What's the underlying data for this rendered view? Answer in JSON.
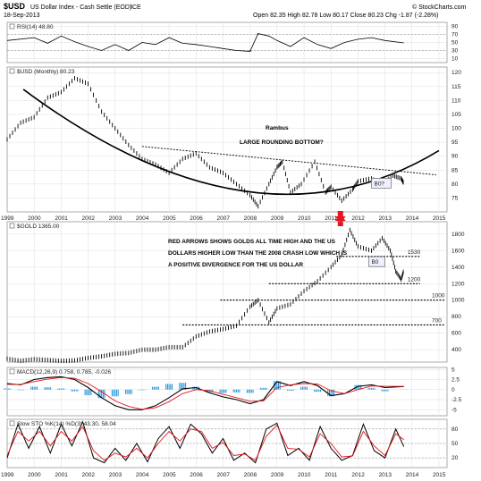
{
  "header": {
    "symbol": "$USD",
    "name": "US Dollar Index - Cash Settle (EOD)",
    "exchange": "ICE",
    "date": "18-Sep-2013",
    "quote": "Open 82.35  High 82.78  Low 80.17  Close 80.23  Chg -1.87 (-2.28%)",
    "watermark": "© StockCharts.com"
  },
  "colors": {
    "price": "#000000",
    "arrow": "#e8141c",
    "macd_hist": "#1e90d6",
    "signal": "#e8141c",
    "rsi_fill": "#b22222",
    "grid": "#dddddd"
  },
  "chart_data": [
    {
      "type": "line",
      "panel": "rsi",
      "title": "RSI(14) 48.80",
      "yticks": [
        90,
        70,
        50,
        30,
        10
      ],
      "ylim": [
        0,
        100
      ],
      "levels": [
        70,
        30
      ],
      "x": [
        1999,
        2000,
        2000.5,
        2001,
        2001.5,
        2002,
        2002.5,
        2003,
        2003.5,
        2004,
        2004.5,
        2005,
        2005.5,
        2006,
        2006.5,
        2007,
        2007.5,
        2008,
        2008.3,
        2008.7,
        2009,
        2009.5,
        2010,
        2010.5,
        2011,
        2011.5,
        2012,
        2012.5,
        2013,
        2013.7
      ],
      "values": [
        55,
        62,
        48,
        66,
        52,
        40,
        30,
        45,
        30,
        50,
        45,
        62,
        48,
        45,
        40,
        35,
        30,
        28,
        72,
        66,
        55,
        40,
        62,
        45,
        35,
        50,
        58,
        62,
        55,
        48.8
      ]
    },
    {
      "type": "line",
      "panel": "usd",
      "title": "$USD (Monthly) 80.23",
      "ylabel": "",
      "yticks": [
        120,
        115,
        110,
        105,
        100,
        95,
        90,
        85,
        80,
        75
      ],
      "ylim": [
        70,
        122
      ],
      "x": [
        1999.0,
        1999.5,
        2000.0,
        2000.5,
        2001.0,
        2001.5,
        2002.0,
        2002.5,
        2003.0,
        2003.5,
        2004.0,
        2004.5,
        2005.0,
        2005.5,
        2006.0,
        2006.5,
        2007.0,
        2007.5,
        2008.0,
        2008.3,
        2008.7,
        2009.0,
        2009.2,
        2009.5,
        2009.9,
        2010.4,
        2010.8,
        2011.0,
        2011.4,
        2011.8,
        2012.0,
        2012.5,
        2012.9,
        2013.3,
        2013.6,
        2013.7
      ],
      "values": [
        96,
        102,
        104,
        111,
        113,
        118,
        116,
        106,
        100,
        94,
        89,
        87,
        84,
        89,
        91,
        86,
        84,
        80,
        76,
        72,
        80,
        86,
        88,
        77,
        80,
        88,
        77,
        79,
        74,
        78,
        81,
        82,
        80,
        83,
        82,
        80.23
      ],
      "annotations": [
        "Rambus",
        "LARGE ROUNDING BOTTOM?",
        "B0?"
      ]
    },
    {
      "type": "line",
      "panel": "gold",
      "title": "$GOLD 1365.00",
      "yticks": [
        1800,
        1600,
        1400,
        1200,
        1000,
        800,
        600,
        400
      ],
      "ylim": [
        250,
        1950
      ],
      "x": [
        1999.0,
        1999.5,
        2000.0,
        2000.5,
        2001.0,
        2001.5,
        2002.0,
        2002.5,
        2003.0,
        2003.5,
        2004.0,
        2004.5,
        2005.0,
        2005.5,
        2006.0,
        2006.5,
        2007.0,
        2007.5,
        2008.0,
        2008.3,
        2008.7,
        2009.0,
        2009.5,
        2010.0,
        2010.5,
        2011.0,
        2011.4,
        2011.7,
        2012.0,
        2012.5,
        2012.9,
        2013.2,
        2013.4,
        2013.6,
        2013.7
      ],
      "values": [
        290,
        265,
        285,
        275,
        265,
        270,
        300,
        320,
        350,
        360,
        400,
        400,
        430,
        430,
        560,
        620,
        650,
        690,
        920,
        1000,
        730,
        900,
        950,
        1110,
        1230,
        1400,
        1550,
        1850,
        1650,
        1600,
        1750,
        1600,
        1350,
        1250,
        1365
      ],
      "levels": [
        {
          "label": "1530",
          "value": 1530,
          "x_from": 2011.2,
          "x_to": 2014.3
        },
        {
          "label": "1200",
          "value": 1200,
          "x_from": 2008.7,
          "x_to": 2014.3
        },
        {
          "label": "1000",
          "value": 1000,
          "x_from": 2006.9,
          "x_to": 2015.2
        },
        {
          "label": "700",
          "value": 700,
          "x_from": 2005.5,
          "x_to": 2015.2
        }
      ],
      "annotations": [
        "RED ARROWS SHOWS GOLDS ALL TIME HIGH AND THE US",
        "DOLLARS HIGHER LOW THAN THE 2008 CRASH LOW WHICH IS",
        "A POSITIVE DIVERGENCE FOR THE US DOLLAR",
        "B0"
      ]
    },
    {
      "type": "line",
      "panel": "macd",
      "title": "MACD(12,26,9) 0.758, 0.785, -0.026",
      "yticks": [
        5.0,
        2.5,
        0.0,
        -2.5,
        -5.0
      ],
      "ylim": [
        -6.5,
        5.5
      ],
      "x": [
        1999.0,
        1999.5,
        2000.0,
        2000.5,
        2001.0,
        2001.5,
        2002.0,
        2002.5,
        2003.0,
        2003.5,
        2004.0,
        2004.5,
        2005.0,
        2005.5,
        2006.0,
        2006.5,
        2007.0,
        2007.5,
        2008.0,
        2008.5,
        2009.0,
        2009.5,
        2010.0,
        2010.5,
        2011.0,
        2011.5,
        2012.0,
        2012.5,
        2013.0,
        2013.7
      ],
      "values": [
        1.5,
        1.2,
        2.5,
        3.0,
        3.2,
        2.5,
        0.5,
        -2.0,
        -4.0,
        -5.0,
        -5.0,
        -4.0,
        -2.0,
        0.2,
        0.5,
        -0.8,
        -1.8,
        -2.5,
        -3.5,
        -2.5,
        2.0,
        1.0,
        2.0,
        1.0,
        -1.5,
        -1.0,
        0.8,
        1.2,
        0.5,
        0.76
      ],
      "signal": [
        1.3,
        1.3,
        2.0,
        2.6,
        3.0,
        2.8,
        1.5,
        -0.5,
        -2.8,
        -4.2,
        -4.9,
        -4.5,
        -3.0,
        -1.0,
        0.0,
        -0.3,
        -1.2,
        -2.0,
        -2.9,
        -2.8,
        0.5,
        1.2,
        1.5,
        1.4,
        -0.3,
        -1.0,
        0.0,
        0.9,
        0.8,
        0.79
      ]
    },
    {
      "type": "line",
      "panel": "sto",
      "title": "Slow STO %K(14) %D(3) 43.30, 58.04",
      "yticks": [
        80,
        50,
        20
      ],
      "ylim": [
        0,
        100
      ],
      "levels": [
        80,
        50,
        20
      ],
      "x": [
        1999.0,
        1999.4,
        1999.8,
        2000.2,
        2000.6,
        2001.0,
        2001.4,
        2001.8,
        2002.2,
        2002.6,
        2003.0,
        2003.4,
        2003.8,
        2004.2,
        2004.6,
        2005.0,
        2005.4,
        2005.8,
        2006.2,
        2006.6,
        2007.0,
        2007.4,
        2007.8,
        2008.2,
        2008.6,
        2009.0,
        2009.4,
        2009.8,
        2010.2,
        2010.6,
        2011.0,
        2011.4,
        2011.8,
        2012.2,
        2012.6,
        2013.0,
        2013.4,
        2013.7
      ],
      "values": [
        20,
        90,
        40,
        85,
        30,
        90,
        45,
        95,
        20,
        10,
        40,
        15,
        50,
        12,
        60,
        85,
        40,
        90,
        70,
        30,
        60,
        15,
        30,
        10,
        80,
        92,
        25,
        40,
        15,
        85,
        40,
        15,
        25,
        90,
        35,
        20,
        80,
        43.3
      ],
      "signal": [
        25,
        75,
        55,
        75,
        45,
        75,
        55,
        85,
        35,
        15,
        30,
        22,
        40,
        20,
        50,
        75,
        55,
        80,
        75,
        40,
        52,
        25,
        28,
        15,
        65,
        88,
        40,
        38,
        22,
        70,
        50,
        22,
        24,
        75,
        45,
        25,
        70,
        58.04
      ]
    }
  ],
  "x_axis_years": [
    "1999",
    "2000",
    "2001",
    "2002",
    "2003",
    "2004",
    "2005",
    "2006",
    "2007",
    "2008",
    "2009",
    "2010",
    "2011",
    "2012",
    "2013",
    "2014",
    "2015"
  ]
}
